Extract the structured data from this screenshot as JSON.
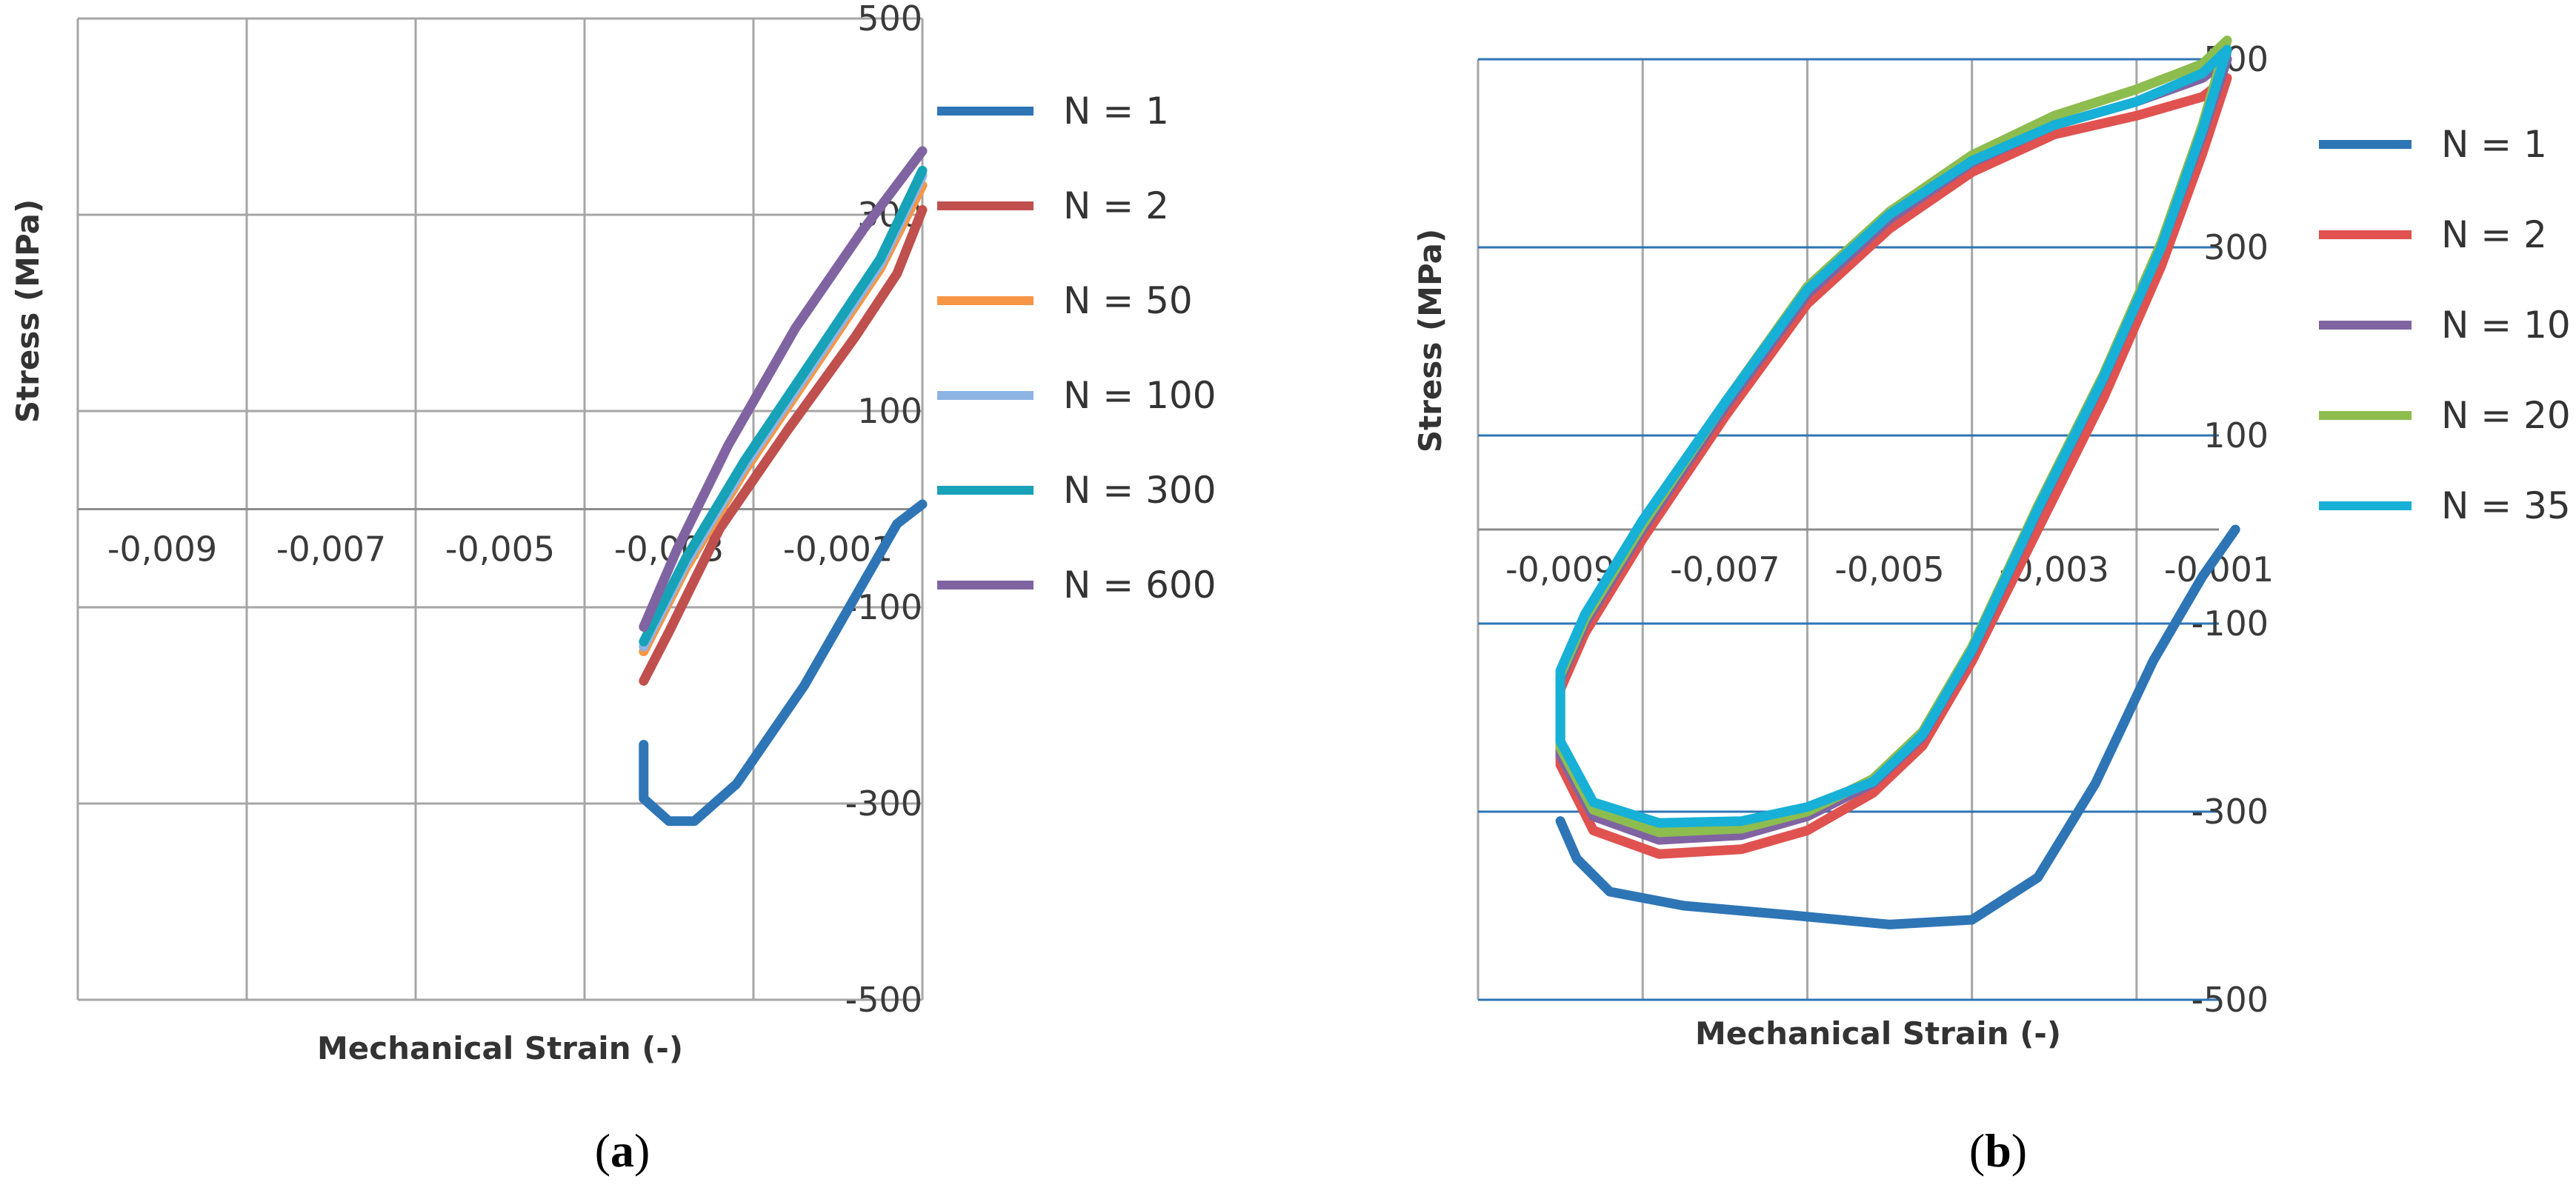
{
  "chart_data": [
    {
      "id": "a",
      "type": "line",
      "caption": {
        "open": "(",
        "letter": "a",
        "close": ")"
      },
      "title": "",
      "xlabel": "Mechanical Strain (-)",
      "ylabel": "Stress (MPa)",
      "xlim": [
        -0.01,
        0.0
      ],
      "ylim": [
        -500,
        500
      ],
      "x_grid_ticks": [
        -0.01,
        -0.008,
        -0.006,
        -0.004,
        -0.002,
        0.0
      ],
      "y_grid_ticks": [
        -500,
        -300,
        -100,
        100,
        300,
        500
      ],
      "x_tick_labels": [
        {
          "value": -0.009,
          "label": "-0,009"
        },
        {
          "value": -0.007,
          "label": "-0,007"
        },
        {
          "value": -0.005,
          "label": "-0,005"
        },
        {
          "value": -0.003,
          "label": "-0,003"
        },
        {
          "value": -0.001,
          "label": "-0,001"
        }
      ],
      "y_tick_labels": [
        {
          "value": 500,
          "label": "500"
        },
        {
          "value": 300,
          "label": "300"
        },
        {
          "value": 100,
          "label": "100"
        },
        {
          "value": -100,
          "label": "-100"
        },
        {
          "value": -300,
          "label": "-300"
        },
        {
          "value": -500,
          "label": "-500"
        }
      ],
      "grid": true,
      "grid_color": "#a6a6a6",
      "legend_position": "right",
      "series": [
        {
          "name": "N = 1",
          "color": "#2e75b6",
          "x": [
            0.0,
            -0.0003,
            -0.0008,
            -0.0014,
            -0.0022,
            -0.0027,
            -0.003,
            -0.0033,
            -0.0033
          ],
          "y": [
            5,
            -15,
            -90,
            -180,
            -280,
            -318,
            -318,
            -295,
            -240
          ]
        },
        {
          "name": "N = 2",
          "color": "#c0504d",
          "x": [
            -0.0033,
            -0.003,
            -0.0024,
            -0.0016,
            -0.0008,
            -0.0003,
            0.0
          ],
          "y": [
            -175,
            -125,
            -20,
            80,
            175,
            240,
            305
          ]
        },
        {
          "name": "N = 50",
          "color": "#f79646",
          "x": [
            -0.0033,
            -0.0028,
            -0.0021,
            -0.0012,
            -0.0005,
            0.0
          ],
          "y": [
            -145,
            -60,
            40,
            155,
            245,
            330
          ]
        },
        {
          "name": "N = 100",
          "color": "#8eb4e3",
          "x": [
            -0.0033,
            -0.0028,
            -0.0021,
            -0.0012,
            -0.0005,
            0.0
          ],
          "y": [
            -140,
            -55,
            45,
            160,
            250,
            340
          ]
        },
        {
          "name": "N = 300",
          "color": "#17a2b8",
          "x": [
            -0.0033,
            -0.0028,
            -0.0021,
            -0.0012,
            -0.0005,
            0.0
          ],
          "y": [
            -135,
            -50,
            50,
            165,
            255,
            345
          ]
        },
        {
          "name": "N = 600",
          "color": "#8064a2",
          "x": [
            -0.0033,
            -0.0029,
            -0.0023,
            -0.0015,
            -0.0007,
            0.0
          ],
          "y": [
            -120,
            -40,
            65,
            185,
            285,
            365
          ]
        }
      ]
    },
    {
      "id": "b",
      "type": "line",
      "caption": {
        "open": "(",
        "letter": "b",
        "close": ")"
      },
      "title": "",
      "xlabel": "Mechanical Strain (-)",
      "ylabel": "Stress (MPa)",
      "xlim": [
        -0.01,
        -0.001
      ],
      "ylim": [
        -500,
        500
      ],
      "x_grid_ticks": [
        -0.01,
        -0.008,
        -0.006,
        -0.004,
        -0.002
      ],
      "y_grid_ticks": [
        -500,
        -300,
        -100,
        100,
        300,
        500
      ],
      "x_tick_labels": [
        {
          "value": -0.009,
          "label": "-0,009"
        },
        {
          "value": -0.007,
          "label": "-0,007"
        },
        {
          "value": -0.005,
          "label": "-0,005"
        },
        {
          "value": -0.003,
          "label": "-0,003"
        },
        {
          "value": -0.001,
          "label": "-0,001"
        }
      ],
      "y_tick_labels": [
        {
          "value": 500,
          "label": "500"
        },
        {
          "value": 300,
          "label": "300"
        },
        {
          "value": 100,
          "label": "100"
        },
        {
          "value": -100,
          "label": "-100"
        },
        {
          "value": -300,
          "label": "-300"
        },
        {
          "value": -500,
          "label": "-500"
        }
      ],
      "grid": true,
      "grid_color": "#a6a6a6",
      "h_grid_color": "#2e75b6",
      "legend_position": "right",
      "series": [
        {
          "name": "N = 1",
          "color": "#2e75b6",
          "x": [
            -0.0008,
            -0.0012,
            -0.0018,
            -0.0025,
            -0.0032,
            -0.004,
            -0.005,
            -0.0062,
            -0.0075,
            -0.0084,
            -0.0088,
            -0.009
          ],
          "y": [
            0,
            -50,
            -140,
            -270,
            -370,
            -415,
            -420,
            -410,
            -400,
            -385,
            -350,
            -310
          ]
        },
        {
          "name": "N = 2",
          "color": "#e0524f",
          "x": [
            -0.0009,
            -0.0012,
            -0.0017,
            -0.0024,
            -0.0032,
            -0.004,
            -0.0046,
            -0.0052,
            -0.006,
            -0.0068,
            -0.0078,
            -0.0086,
            -0.009,
            -0.009,
            -0.0087,
            -0.008,
            -0.007,
            -0.006,
            -0.005,
            -0.004,
            -0.003,
            -0.002,
            -0.0012,
            -0.0009
          ],
          "y": [
            480,
            400,
            280,
            140,
            0,
            -140,
            -230,
            -280,
            -320,
            -340,
            -345,
            -320,
            -250,
            -170,
            -110,
            -10,
            120,
            240,
            320,
            380,
            420,
            440,
            460,
            480
          ]
        },
        {
          "name": "N = 10",
          "color": "#8064a2",
          "x": [
            -0.0009,
            -0.0012,
            -0.0017,
            -0.0024,
            -0.0032,
            -0.004,
            -0.0046,
            -0.0052,
            -0.006,
            -0.0068,
            -0.0078,
            -0.0086,
            -0.009,
            -0.009,
            -0.0087,
            -0.008,
            -0.007,
            -0.006,
            -0.005,
            -0.004,
            -0.003,
            -0.002,
            -0.0012,
            -0.0009
          ],
          "y": [
            500,
            420,
            300,
            160,
            20,
            -130,
            -220,
            -270,
            -305,
            -325,
            -330,
            -305,
            -240,
            -160,
            -100,
            0,
            130,
            250,
            330,
            390,
            430,
            455,
            480,
            500
          ]
        },
        {
          "name": "N = 20",
          "color": "#8dbd4f",
          "x": [
            -0.0009,
            -0.0012,
            -0.0017,
            -0.0024,
            -0.0032,
            -0.004,
            -0.0046,
            -0.0052,
            -0.006,
            -0.0068,
            -0.0078,
            -0.0086,
            -0.009,
            -0.009,
            -0.0087,
            -0.008,
            -0.007,
            -0.006,
            -0.005,
            -0.004,
            -0.003,
            -0.002,
            -0.0012,
            -0.0009
          ],
          "y": [
            520,
            430,
            305,
            165,
            25,
            -125,
            -215,
            -265,
            -300,
            -318,
            -322,
            -298,
            -232,
            -155,
            -95,
            5,
            135,
            258,
            338,
            398,
            440,
            468,
            495,
            520
          ]
        },
        {
          "name": "N = 35",
          "color": "#17b0d6",
          "x": [
            -0.0009,
            -0.0012,
            -0.0017,
            -0.0024,
            -0.0032,
            -0.004,
            -0.0046,
            -0.0052,
            -0.006,
            -0.0068,
            -0.0078,
            -0.0086,
            -0.009,
            -0.009,
            -0.0087,
            -0.008,
            -0.007,
            -0.006,
            -0.005,
            -0.004,
            -0.003,
            -0.002,
            -0.0012,
            -0.0009
          ],
          "y": [
            510,
            425,
            300,
            162,
            22,
            -128,
            -218,
            -268,
            -295,
            -310,
            -312,
            -290,
            -225,
            -150,
            -90,
            10,
            135,
            255,
            335,
            392,
            430,
            455,
            485,
            510
          ]
        }
      ]
    }
  ]
}
